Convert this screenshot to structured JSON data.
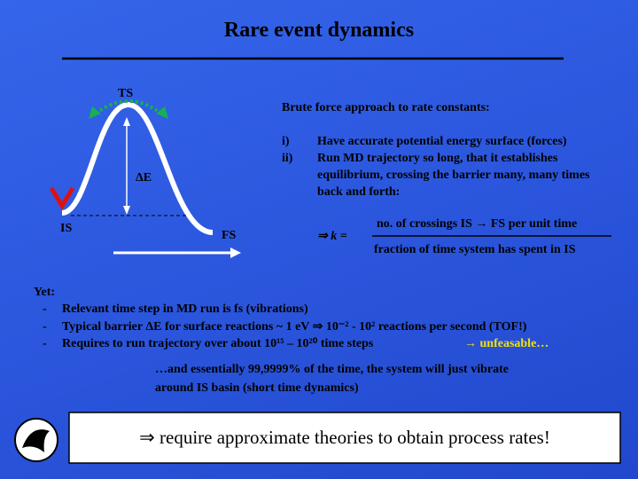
{
  "title": "Rare event dynamics",
  "diagram": {
    "ts": "TS",
    "delta_e": "ΔE",
    "is": "IS",
    "fs": "FS"
  },
  "brute_force": {
    "heading": "Brute force approach to rate constants:",
    "items": [
      {
        "marker": "i)",
        "text": "Have accurate potential energy surface (forces)"
      },
      {
        "marker": "ii)",
        "text": "Run MD trajectory so long, that it establishes equilibrium, crossing the barrier many, many times back and forth:"
      }
    ]
  },
  "formula": {
    "lhs": "⇒  k =",
    "numerator": "no. of crossings IS → FS per unit time",
    "denominator": "fraction of time system has spent in IS"
  },
  "yet": {
    "heading": "Yet:",
    "items": [
      {
        "marker": "-",
        "text": "Relevant time step in MD run is fs   (vibrations)"
      },
      {
        "marker": "-",
        "text": "Typical barrier ΔE for surface reactions ~ 1 eV  ⇒   10⁻²  -  10² reactions per second (TOF!)"
      },
      {
        "marker": "-",
        "text": "Requires to run trajectory over about 10¹⁵ – 10²⁰ time steps"
      }
    ],
    "highlight": "→ unfeasable…"
  },
  "note": "…and essentially 99,9999% of the time, the system will just vibrate around IS basin (short time dynamics)",
  "conclusion": "⇒ require approximate theories to obtain process rates!"
}
